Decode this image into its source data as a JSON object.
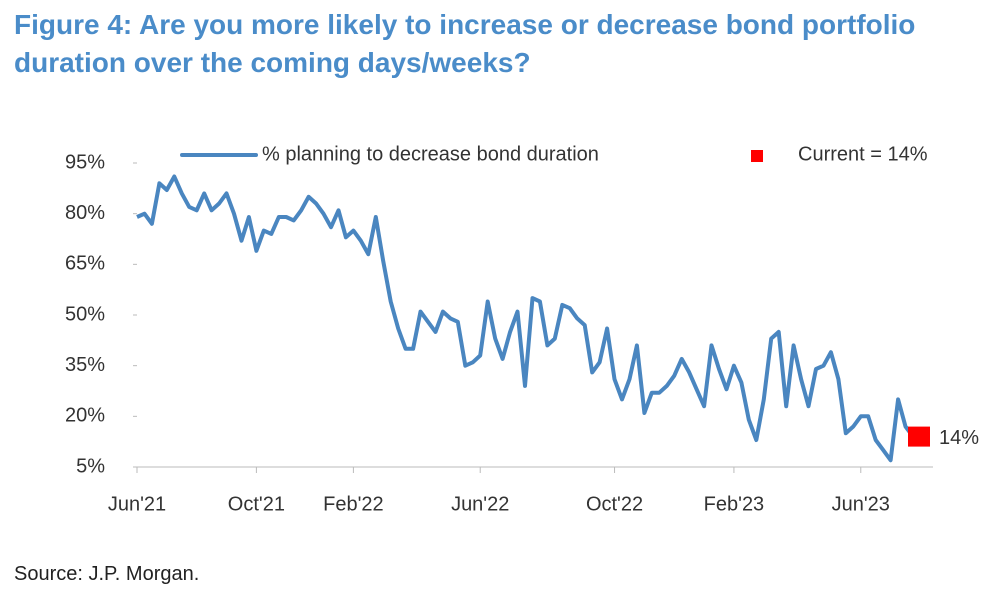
{
  "chart_data": {
    "type": "line",
    "title": "Figure 4: Are you more likely to increase or decrease bond portfolio duration over the coming days/weeks?",
    "source": "Source: J.P. Morgan.",
    "categories": [
      "Jun'21",
      null,
      null,
      null,
      null,
      null,
      null,
      null,
      null,
      null,
      null,
      null,
      null,
      null,
      null,
      null,
      "Oct'21",
      null,
      null,
      null,
      null,
      null,
      null,
      null,
      null,
      null,
      null,
      null,
      null,
      "Feb'22",
      null,
      null,
      null,
      null,
      null,
      null,
      null,
      null,
      null,
      null,
      null,
      null,
      null,
      null,
      null,
      null,
      "Jun'22",
      null,
      null,
      null,
      null,
      null,
      null,
      null,
      null,
      null,
      null,
      null,
      null,
      null,
      null,
      null,
      null,
      null,
      "Oct'22",
      null,
      null,
      null,
      null,
      null,
      null,
      null,
      null,
      null,
      null,
      null,
      null,
      null,
      null,
      null,
      "Feb'23",
      null,
      null,
      null,
      null,
      null,
      null,
      null,
      null,
      null,
      null,
      null,
      null,
      null,
      null,
      null,
      null,
      "Jun'23",
      null,
      null,
      null,
      null,
      null,
      null,
      null
    ],
    "series": [
      {
        "name": "% planning to decrease bond duration",
        "color": "#4a86c0",
        "values": [
          79,
          80,
          77,
          89,
          87,
          91,
          86,
          82,
          81,
          86,
          81,
          83,
          86,
          80,
          72,
          79,
          69,
          75,
          74,
          79,
          79,
          78,
          81,
          85,
          83,
          80,
          76,
          81,
          73,
          75,
          72,
          68,
          79,
          66,
          54,
          46,
          40,
          40,
          51,
          48,
          45,
          51,
          49,
          48,
          35,
          36,
          38,
          54,
          43,
          37,
          45,
          51,
          29,
          55,
          54,
          41,
          43,
          53,
          52,
          49,
          47,
          33,
          36,
          46,
          31,
          25,
          31,
          41,
          21,
          27,
          27,
          29,
          32,
          37,
          33,
          28,
          23,
          41,
          34,
          28,
          35,
          30,
          19,
          13,
          25,
          43,
          45,
          23,
          41,
          31,
          23,
          34,
          35,
          39,
          31,
          15,
          17,
          20,
          20,
          13,
          10,
          7,
          25,
          17,
          14
        ]
      }
    ],
    "current": {
      "name": "Current = 14%",
      "value": 14,
      "label": "14%",
      "color": "#ff0000"
    },
    "ylim": [
      5,
      95
    ],
    "yticks": [
      {
        "value": 95,
        "label": "95%"
      },
      {
        "value": 80,
        "label": "80%"
      },
      {
        "value": 65,
        "label": "65%"
      },
      {
        "value": 50,
        "label": "50%"
      },
      {
        "value": 35,
        "label": "35%"
      },
      {
        "value": 20,
        "label": "20%"
      },
      {
        "value": 5,
        "label": "5%"
      }
    ],
    "grid": false
  }
}
